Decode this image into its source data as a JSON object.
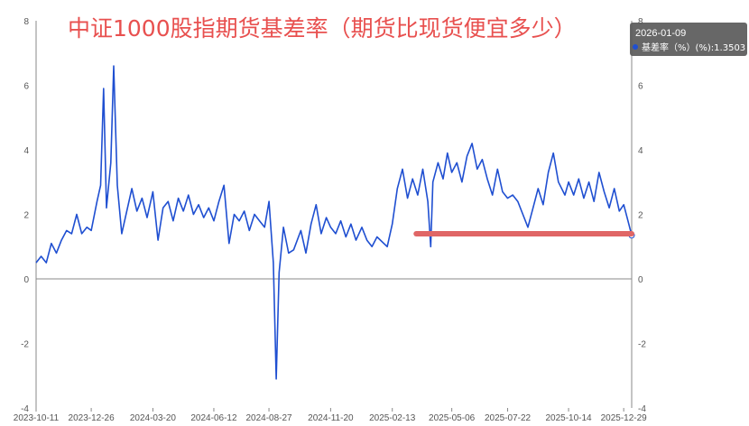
{
  "chart_data": {
    "type": "line",
    "title": "中证1000股指期货基差率（期货比现货便宜多少）",
    "ylim": [
      -4,
      8
    ],
    "yticks": [
      -4,
      -2,
      0,
      2,
      4,
      6,
      8
    ],
    "right_yticks": [
      -4,
      -2,
      0,
      2,
      4,
      6,
      8
    ],
    "xticks": [
      "2023-10-11",
      "2023-12-26",
      "2024-03-20",
      "2024-06-12",
      "2024-08-27",
      "2024-11-20",
      "2025-02-13",
      "2025-05-06",
      "2025-07-22",
      "2025-10-14",
      "2025-12-29"
    ],
    "x_start": "2023-10-11",
    "x_end": "2026-01-09",
    "series": [
      {
        "color": "#1f4fd1",
        "points": [
          [
            "2023-10-11",
            0.5
          ],
          [
            "2023-10-18",
            0.7
          ],
          [
            "2023-10-25",
            0.5
          ],
          [
            "2023-11-01",
            1.1
          ],
          [
            "2023-11-08",
            0.8
          ],
          [
            "2023-11-15",
            1.2
          ],
          [
            "2023-11-22",
            1.5
          ],
          [
            "2023-11-29",
            1.4
          ],
          [
            "2023-12-06",
            2.0
          ],
          [
            "2023-12-13",
            1.4
          ],
          [
            "2023-12-20",
            1.6
          ],
          [
            "2023-12-26",
            1.5
          ],
          [
            "2024-01-03",
            2.4
          ],
          [
            "2024-01-08",
            2.9
          ],
          [
            "2024-01-12",
            5.9
          ],
          [
            "2024-01-16",
            2.2
          ],
          [
            "2024-01-22",
            3.6
          ],
          [
            "2024-01-26",
            6.6
          ],
          [
            "2024-01-31",
            2.9
          ],
          [
            "2024-02-06",
            1.4
          ],
          [
            "2024-02-20",
            2.8
          ],
          [
            "2024-02-27",
            2.1
          ],
          [
            "2024-03-05",
            2.5
          ],
          [
            "2024-03-12",
            1.9
          ],
          [
            "2024-03-20",
            2.7
          ],
          [
            "2024-03-27",
            1.2
          ],
          [
            "2024-04-03",
            2.2
          ],
          [
            "2024-04-10",
            2.4
          ],
          [
            "2024-04-17",
            1.8
          ],
          [
            "2024-04-24",
            2.5
          ],
          [
            "2024-05-01",
            2.1
          ],
          [
            "2024-05-08",
            2.6
          ],
          [
            "2024-05-15",
            2.0
          ],
          [
            "2024-05-22",
            2.3
          ],
          [
            "2024-05-29",
            1.9
          ],
          [
            "2024-06-05",
            2.2
          ],
          [
            "2024-06-12",
            1.8
          ],
          [
            "2024-06-19",
            2.4
          ],
          [
            "2024-06-26",
            2.9
          ],
          [
            "2024-07-03",
            1.1
          ],
          [
            "2024-07-10",
            2.0
          ],
          [
            "2024-07-17",
            1.8
          ],
          [
            "2024-07-24",
            2.1
          ],
          [
            "2024-07-31",
            1.5
          ],
          [
            "2024-08-07",
            2.0
          ],
          [
            "2024-08-14",
            1.8
          ],
          [
            "2024-08-21",
            1.6
          ],
          [
            "2024-08-27",
            2.4
          ],
          [
            "2024-09-02",
            0.5
          ],
          [
            "2024-09-06",
            -3.1
          ],
          [
            "2024-09-10",
            0.2
          ],
          [
            "2024-09-16",
            1.6
          ],
          [
            "2024-09-23",
            0.8
          ],
          [
            "2024-09-30",
            0.9
          ],
          [
            "2024-10-10",
            1.5
          ],
          [
            "2024-10-17",
            0.8
          ],
          [
            "2024-10-24",
            1.7
          ],
          [
            "2024-10-31",
            2.3
          ],
          [
            "2024-11-07",
            1.4
          ],
          [
            "2024-11-14",
            1.9
          ],
          [
            "2024-11-20",
            1.6
          ],
          [
            "2024-11-27",
            1.4
          ],
          [
            "2024-12-04",
            1.8
          ],
          [
            "2024-12-11",
            1.3
          ],
          [
            "2024-12-18",
            1.7
          ],
          [
            "2024-12-25",
            1.2
          ],
          [
            "2025-01-02",
            1.6
          ],
          [
            "2025-01-09",
            1.2
          ],
          [
            "2025-01-16",
            1.0
          ],
          [
            "2025-01-23",
            1.3
          ],
          [
            "2025-02-06",
            1.0
          ],
          [
            "2025-02-13",
            1.7
          ],
          [
            "2025-02-20",
            2.8
          ],
          [
            "2025-02-27",
            3.4
          ],
          [
            "2025-03-06",
            2.5
          ],
          [
            "2025-03-13",
            3.1
          ],
          [
            "2025-03-20",
            2.6
          ],
          [
            "2025-03-27",
            3.4
          ],
          [
            "2025-04-03",
            2.4
          ],
          [
            "2025-04-07",
            1.0
          ],
          [
            "2025-04-10",
            3.0
          ],
          [
            "2025-04-17",
            3.6
          ],
          [
            "2025-04-24",
            3.1
          ],
          [
            "2025-04-30",
            3.9
          ],
          [
            "2025-05-06",
            3.3
          ],
          [
            "2025-05-13",
            3.6
          ],
          [
            "2025-05-20",
            3.0
          ],
          [
            "2025-05-27",
            3.8
          ],
          [
            "2025-06-03",
            4.2
          ],
          [
            "2025-06-10",
            3.4
          ],
          [
            "2025-06-17",
            3.7
          ],
          [
            "2025-06-24",
            3.1
          ],
          [
            "2025-07-01",
            2.6
          ],
          [
            "2025-07-08",
            3.4
          ],
          [
            "2025-07-15",
            2.7
          ],
          [
            "2025-07-22",
            2.5
          ],
          [
            "2025-07-29",
            2.6
          ],
          [
            "2025-08-05",
            2.4
          ],
          [
            "2025-08-12",
            2.0
          ],
          [
            "2025-08-19",
            1.6
          ],
          [
            "2025-08-26",
            2.2
          ],
          [
            "2025-09-02",
            2.8
          ],
          [
            "2025-09-09",
            2.3
          ],
          [
            "2025-09-16",
            3.3
          ],
          [
            "2025-09-23",
            3.9
          ],
          [
            "2025-09-30",
            3.0
          ],
          [
            "2025-10-09",
            2.6
          ],
          [
            "2025-10-14",
            3.0
          ],
          [
            "2025-10-21",
            2.6
          ],
          [
            "2025-10-28",
            3.1
          ],
          [
            "2025-11-04",
            2.5
          ],
          [
            "2025-11-11",
            3.0
          ],
          [
            "2025-11-18",
            2.4
          ],
          [
            "2025-11-25",
            3.3
          ],
          [
            "2025-12-02",
            2.7
          ],
          [
            "2025-12-09",
            2.2
          ],
          [
            "2025-12-16",
            2.8
          ],
          [
            "2025-12-23",
            2.1
          ],
          [
            "2025-12-29",
            2.3
          ],
          [
            "2026-01-05",
            1.7
          ],
          [
            "2026-01-09",
            1.35
          ]
        ]
      }
    ],
    "annotation_line": {
      "y": 1.4,
      "x_from": "2025-03-18",
      "x_to": "2026-01-09",
      "color": "#e06666"
    },
    "tooltip": {
      "date": "2026-01-09",
      "label": "基差率（%）(%):1.3503",
      "value": 1.3503
    },
    "grid": false,
    "colors": {
      "line": "#1f4fd1",
      "title": "#e8504f",
      "marker": "#e06666"
    }
  }
}
